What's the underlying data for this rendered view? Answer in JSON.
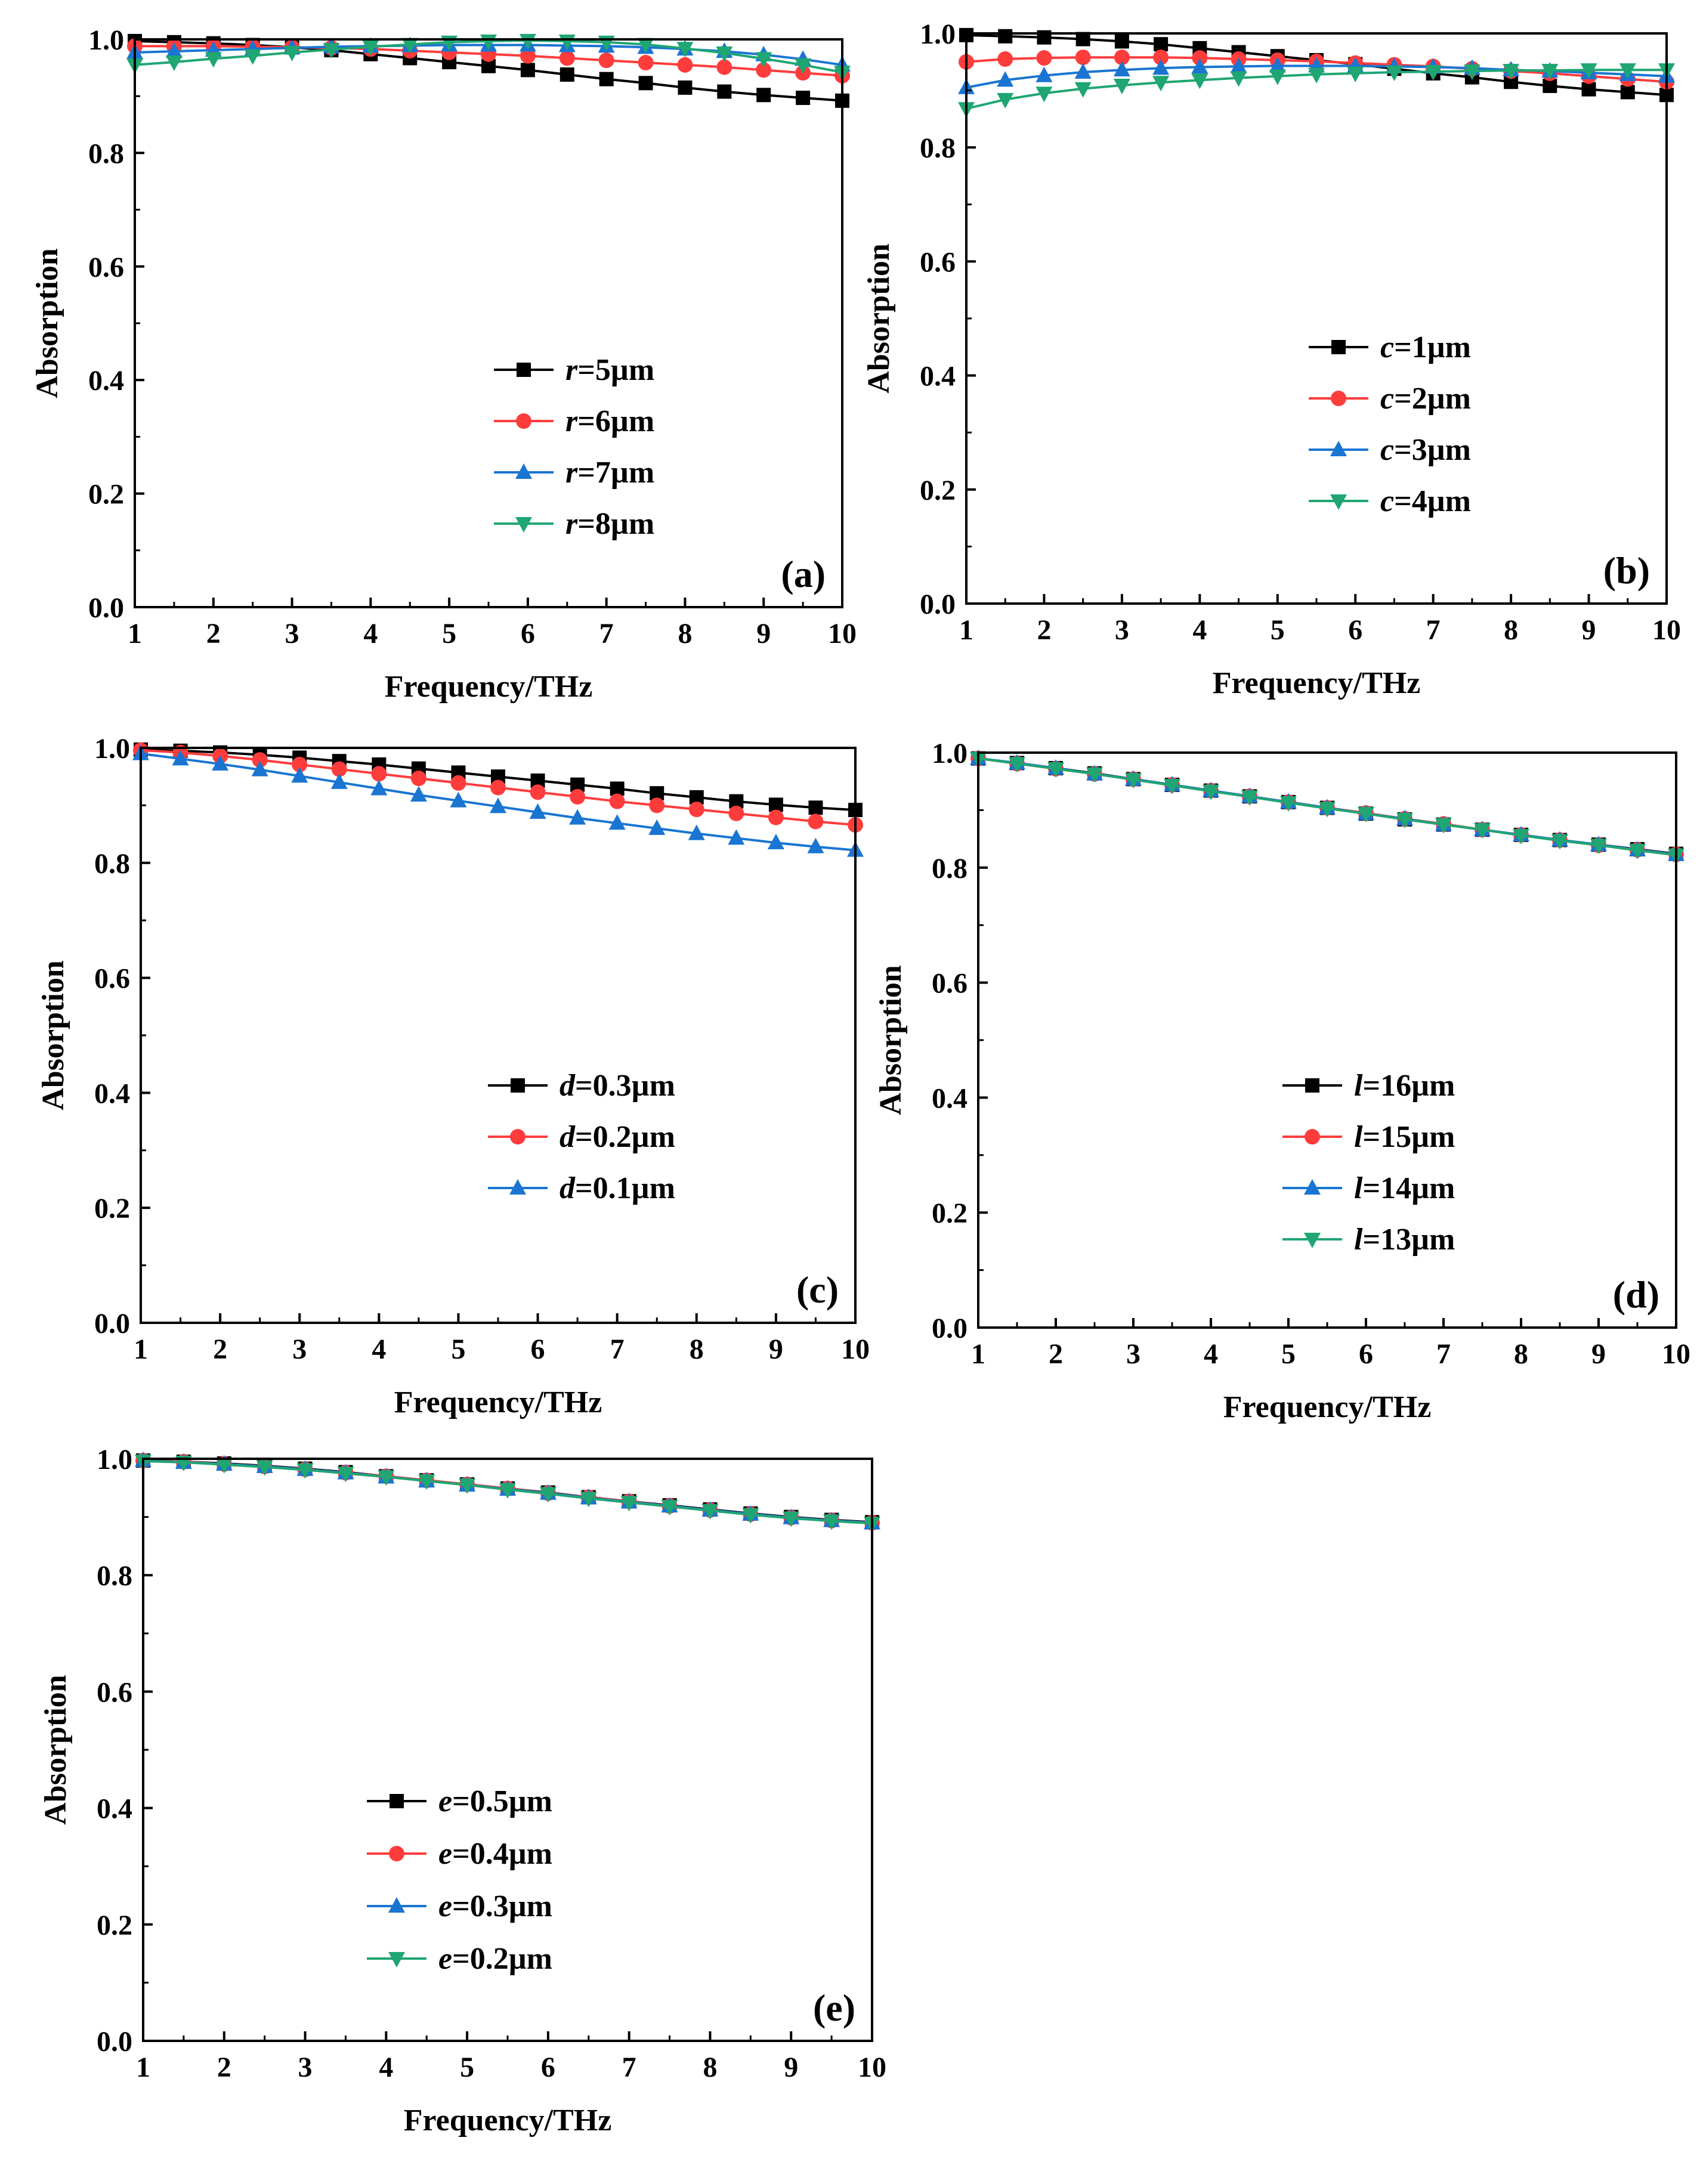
{
  "axis_labels": {
    "x": "Frequency/THz",
    "y": "Absorption"
  },
  "series_colors": [
    "#000000",
    "#ff3c3c",
    "#1a75d2",
    "#1fa672"
  ],
  "series_markers": [
    "square",
    "circle",
    "triangle-up",
    "triangle-down"
  ],
  "chart_data": [
    {
      "type": "line",
      "panel": "(a)",
      "xlabel": "Frequency/THz",
      "ylabel": "Absorption",
      "xlim": [
        1,
        10
      ],
      "ylim": [
        0,
        1
      ],
      "xticks": [
        1,
        2,
        3,
        4,
        5,
        6,
        7,
        8,
        9,
        10
      ],
      "yticks": [
        0.0,
        0.2,
        0.4,
        0.6,
        0.8,
        1.0
      ],
      "legend_position": "center-right",
      "series": [
        {
          "name": "r=5µm",
          "param": "r",
          "value": "=5µm",
          "x": [
            1,
            1.5,
            2,
            2.5,
            3,
            3.5,
            4,
            4.5,
            5,
            5.5,
            6,
            6.5,
            7,
            7.5,
            8,
            8.5,
            9,
            9.5,
            10
          ],
          "values": [
            0.997,
            0.995,
            0.993,
            0.99,
            0.986,
            0.981,
            0.974,
            0.967,
            0.96,
            0.953,
            0.946,
            0.938,
            0.93,
            0.923,
            0.915,
            0.908,
            0.902,
            0.897,
            0.892
          ]
        },
        {
          "name": "r=6µm",
          "param": "r",
          "value": "=6µm",
          "x": [
            1,
            1.5,
            2,
            2.5,
            3,
            3.5,
            4,
            4.5,
            5,
            5.5,
            6,
            6.5,
            7,
            7.5,
            8,
            8.5,
            9,
            9.5,
            10
          ],
          "values": [
            0.988,
            0.988,
            0.988,
            0.987,
            0.986,
            0.985,
            0.983,
            0.98,
            0.977,
            0.974,
            0.971,
            0.967,
            0.963,
            0.959,
            0.955,
            0.951,
            0.946,
            0.941,
            0.936
          ]
        },
        {
          "name": "r=7µm",
          "param": "r",
          "value": "=7µm",
          "x": [
            1,
            1.5,
            2,
            2.5,
            3,
            3.5,
            4,
            4.5,
            5,
            5.5,
            6,
            6.5,
            7,
            7.5,
            8,
            8.5,
            9,
            9.5,
            10
          ],
          "values": [
            0.977,
            0.979,
            0.981,
            0.983,
            0.985,
            0.987,
            0.988,
            0.989,
            0.99,
            0.99,
            0.99,
            0.989,
            0.988,
            0.986,
            0.983,
            0.979,
            0.973,
            0.965,
            0.955
          ]
        },
        {
          "name": "r=8µm",
          "param": "r",
          "value": "=8µm",
          "x": [
            1,
            1.5,
            2,
            2.5,
            3,
            3.5,
            4,
            4.5,
            5,
            5.5,
            6,
            6.5,
            7,
            7.5,
            8,
            8.5,
            9,
            9.5,
            10
          ],
          "values": [
            0.955,
            0.96,
            0.966,
            0.971,
            0.977,
            0.982,
            0.987,
            0.991,
            0.995,
            0.997,
            0.998,
            0.997,
            0.995,
            0.991,
            0.984,
            0.976,
            0.966,
            0.955,
            0.942
          ]
        }
      ]
    },
    {
      "type": "line",
      "panel": "(b)",
      "xlabel": "Frequency/THz",
      "ylabel": "Absorption",
      "xlim": [
        1,
        10
      ],
      "ylim": [
        0,
        1
      ],
      "xticks": [
        1,
        2,
        3,
        4,
        5,
        6,
        7,
        8,
        9,
        10
      ],
      "yticks": [
        0.0,
        0.2,
        0.4,
        0.6,
        0.8,
        1.0
      ],
      "legend_position": "center-right",
      "series": [
        {
          "name": "c=1µm",
          "param": "c",
          "value": "=1µm",
          "x": [
            1,
            1.5,
            2,
            2.5,
            3,
            3.5,
            4,
            4.5,
            5,
            5.5,
            6,
            6.5,
            7,
            7.5,
            8,
            8.5,
            9,
            9.5,
            10
          ],
          "values": [
            0.997,
            0.995,
            0.993,
            0.99,
            0.986,
            0.981,
            0.974,
            0.967,
            0.96,
            0.953,
            0.946,
            0.938,
            0.93,
            0.923,
            0.915,
            0.908,
            0.902,
            0.897,
            0.892
          ]
        },
        {
          "name": "c=2µm",
          "param": "c",
          "value": "=2µm",
          "x": [
            1,
            1.5,
            2,
            2.5,
            3,
            3.5,
            4,
            4.5,
            5,
            5.5,
            6,
            6.5,
            7,
            7.5,
            8,
            8.5,
            9,
            9.5,
            10
          ],
          "values": [
            0.95,
            0.955,
            0.957,
            0.958,
            0.958,
            0.958,
            0.957,
            0.955,
            0.953,
            0.951,
            0.948,
            0.945,
            0.942,
            0.938,
            0.934,
            0.93,
            0.925,
            0.92,
            0.915
          ]
        },
        {
          "name": "c=3µm",
          "param": "c",
          "value": "=3µm",
          "x": [
            1,
            1.5,
            2,
            2.5,
            3,
            3.5,
            4,
            4.5,
            5,
            5.5,
            6,
            6.5,
            7,
            7.5,
            8,
            8.5,
            9,
            9.5,
            10
          ],
          "values": [
            0.905,
            0.918,
            0.926,
            0.932,
            0.936,
            0.939,
            0.941,
            0.942,
            0.943,
            0.943,
            0.943,
            0.942,
            0.941,
            0.939,
            0.936,
            0.934,
            0.931,
            0.928,
            0.925
          ]
        },
        {
          "name": "c=4µm",
          "param": "c",
          "value": "=4µm",
          "x": [
            1,
            1.5,
            2,
            2.5,
            3,
            3.5,
            4,
            4.5,
            5,
            5.5,
            6,
            6.5,
            7,
            7.5,
            8,
            8.5,
            9,
            9.5,
            10
          ],
          "values": [
            0.868,
            0.884,
            0.895,
            0.903,
            0.909,
            0.914,
            0.918,
            0.922,
            0.925,
            0.928,
            0.93,
            0.932,
            0.933,
            0.934,
            0.935,
            0.935,
            0.936,
            0.936,
            0.936
          ]
        }
      ]
    },
    {
      "type": "line",
      "panel": "(c)",
      "xlabel": "Frequency/THz",
      "ylabel": "Absorption",
      "xlim": [
        1,
        10
      ],
      "ylim": [
        0,
        1
      ],
      "xticks": [
        1,
        2,
        3,
        4,
        5,
        6,
        7,
        8,
        9,
        10
      ],
      "yticks": [
        0.0,
        0.2,
        0.4,
        0.6,
        0.8,
        1.0
      ],
      "legend_position": "center-right",
      "series": [
        {
          "name": "d=0.3µm",
          "param": "d",
          "value": "=0.3µm",
          "x": [
            1,
            1.5,
            2,
            2.5,
            3,
            3.5,
            4,
            4.5,
            5,
            5.5,
            6,
            6.5,
            7,
            7.5,
            8,
            8.5,
            9,
            9.5,
            10
          ],
          "values": [
            0.997,
            0.995,
            0.992,
            0.988,
            0.983,
            0.977,
            0.971,
            0.964,
            0.957,
            0.95,
            0.943,
            0.936,
            0.929,
            0.921,
            0.914,
            0.907,
            0.901,
            0.896,
            0.892
          ]
        },
        {
          "name": "d=0.2µm",
          "param": "d",
          "value": "=0.2µm",
          "x": [
            1,
            1.5,
            2,
            2.5,
            3,
            3.5,
            4,
            4.5,
            5,
            5.5,
            6,
            6.5,
            7,
            7.5,
            8,
            8.5,
            9,
            9.5,
            10
          ],
          "values": [
            0.996,
            0.992,
            0.986,
            0.979,
            0.971,
            0.963,
            0.955,
            0.947,
            0.939,
            0.931,
            0.923,
            0.915,
            0.907,
            0.9,
            0.893,
            0.886,
            0.879,
            0.872,
            0.866
          ]
        },
        {
          "name": "d=0.1µm",
          "param": "d",
          "value": "=0.1µm",
          "x": [
            1,
            1.5,
            2,
            2.5,
            3,
            3.5,
            4,
            4.5,
            5,
            5.5,
            6,
            6.5,
            7,
            7.5,
            8,
            8.5,
            9,
            9.5,
            10
          ],
          "values": [
            0.99,
            0.981,
            0.972,
            0.962,
            0.951,
            0.94,
            0.929,
            0.918,
            0.908,
            0.898,
            0.888,
            0.878,
            0.869,
            0.86,
            0.851,
            0.843,
            0.835,
            0.828,
            0.822
          ]
        }
      ]
    },
    {
      "type": "line",
      "panel": "(d)",
      "xlabel": "Frequency/THz",
      "ylabel": "Absorption",
      "xlim": [
        1,
        10
      ],
      "ylim": [
        0,
        1
      ],
      "xticks": [
        1,
        2,
        3,
        4,
        5,
        6,
        7,
        8,
        9,
        10
      ],
      "yticks": [
        0.0,
        0.2,
        0.4,
        0.6,
        0.8,
        1.0
      ],
      "legend_position": "center-right",
      "series": [
        {
          "name": "l=16µm",
          "param": "l",
          "value": "=16µm",
          "x": [
            1,
            1.5,
            2,
            2.5,
            3,
            3.5,
            4,
            4.5,
            5,
            5.5,
            6,
            6.5,
            7,
            7.5,
            8,
            8.5,
            9,
            9.5,
            10
          ],
          "values": [
            0.99,
            0.982,
            0.973,
            0.964,
            0.954,
            0.944,
            0.934,
            0.924,
            0.914,
            0.904,
            0.894,
            0.884,
            0.875,
            0.866,
            0.857,
            0.848,
            0.84,
            0.832,
            0.824
          ]
        },
        {
          "name": "l=15µm",
          "param": "l",
          "value": "=15µm",
          "x": [
            1,
            1.5,
            2,
            2.5,
            3,
            3.5,
            4,
            4.5,
            5,
            5.5,
            6,
            6.5,
            7,
            7.5,
            8,
            8.5,
            9,
            9.5,
            10
          ],
          "values": [
            0.99,
            0.981,
            0.972,
            0.963,
            0.954,
            0.944,
            0.934,
            0.924,
            0.914,
            0.904,
            0.895,
            0.885,
            0.876,
            0.866,
            0.857,
            0.848,
            0.839,
            0.831,
            0.823
          ]
        },
        {
          "name": "l=14µm",
          "param": "l",
          "value": "=14µm",
          "x": [
            1,
            1.5,
            2,
            2.5,
            3,
            3.5,
            4,
            4.5,
            5,
            5.5,
            6,
            6.5,
            7,
            7.5,
            8,
            8.5,
            9,
            9.5,
            10
          ],
          "values": [
            0.99,
            0.982,
            0.973,
            0.963,
            0.954,
            0.944,
            0.934,
            0.924,
            0.914,
            0.904,
            0.894,
            0.885,
            0.875,
            0.866,
            0.857,
            0.848,
            0.84,
            0.831,
            0.823
          ]
        },
        {
          "name": "l=13µm",
          "param": "l",
          "value": "=13µm",
          "x": [
            1,
            1.5,
            2,
            2.5,
            3,
            3.5,
            4,
            4.5,
            5,
            5.5,
            6,
            6.5,
            7,
            7.5,
            8,
            8.5,
            9,
            9.5,
            10
          ],
          "values": [
            0.99,
            0.981,
            0.972,
            0.963,
            0.953,
            0.943,
            0.933,
            0.923,
            0.913,
            0.903,
            0.894,
            0.884,
            0.875,
            0.866,
            0.856,
            0.847,
            0.839,
            0.83,
            0.822
          ]
        }
      ]
    },
    {
      "type": "line",
      "panel": "(e)",
      "xlabel": "Frequency/THz",
      "ylabel": "Absorption",
      "xlim": [
        1,
        10
      ],
      "ylim": [
        0,
        1
      ],
      "xticks": [
        1,
        2,
        3,
        4,
        5,
        6,
        7,
        8,
        9,
        10
      ],
      "yticks": [
        0.0,
        0.2,
        0.4,
        0.6,
        0.8,
        1.0
      ],
      "legend_position": "center-left",
      "series": [
        {
          "name": "e=0.5µm",
          "param": "e",
          "value": "=0.5µm",
          "x": [
            1,
            1.5,
            2,
            2.5,
            3,
            3.5,
            4,
            4.5,
            5,
            5.5,
            6,
            6.5,
            7,
            7.5,
            8,
            8.5,
            9,
            9.5,
            10
          ],
          "values": [
            0.997,
            0.995,
            0.992,
            0.988,
            0.983,
            0.977,
            0.97,
            0.963,
            0.956,
            0.949,
            0.942,
            0.934,
            0.927,
            0.92,
            0.913,
            0.906,
            0.9,
            0.895,
            0.891
          ]
        },
        {
          "name": "e=0.4µm",
          "param": "e",
          "value": "=0.4µm",
          "x": [
            1,
            1.5,
            2,
            2.5,
            3,
            3.5,
            4,
            4.5,
            5,
            5.5,
            6,
            6.5,
            7,
            7.5,
            8,
            8.5,
            9,
            9.5,
            10
          ],
          "values": [
            0.997,
            0.995,
            0.991,
            0.987,
            0.982,
            0.976,
            0.97,
            0.963,
            0.956,
            0.949,
            0.941,
            0.934,
            0.927,
            0.919,
            0.912,
            0.905,
            0.899,
            0.894,
            0.89
          ]
        },
        {
          "name": "e=0.3µm",
          "param": "e",
          "value": "=0.3µm",
          "x": [
            1,
            1.5,
            2,
            2.5,
            3,
            3.5,
            4,
            4.5,
            5,
            5.5,
            6,
            6.5,
            7,
            7.5,
            8,
            8.5,
            9,
            9.5,
            10
          ],
          "values": [
            0.997,
            0.994,
            0.991,
            0.987,
            0.982,
            0.976,
            0.969,
            0.962,
            0.955,
            0.948,
            0.941,
            0.933,
            0.926,
            0.919,
            0.912,
            0.905,
            0.899,
            0.894,
            0.89
          ]
        },
        {
          "name": "e=0.2µm",
          "param": "e",
          "value": "=0.2µm",
          "x": [
            1,
            1.5,
            2,
            2.5,
            3,
            3.5,
            4,
            4.5,
            5,
            5.5,
            6,
            6.5,
            7,
            7.5,
            8,
            8.5,
            9,
            9.5,
            10
          ],
          "values": [
            0.996,
            0.994,
            0.99,
            0.986,
            0.981,
            0.975,
            0.969,
            0.962,
            0.955,
            0.947,
            0.94,
            0.932,
            0.925,
            0.918,
            0.911,
            0.904,
            0.898,
            0.893,
            0.889
          ]
        }
      ]
    }
  ]
}
